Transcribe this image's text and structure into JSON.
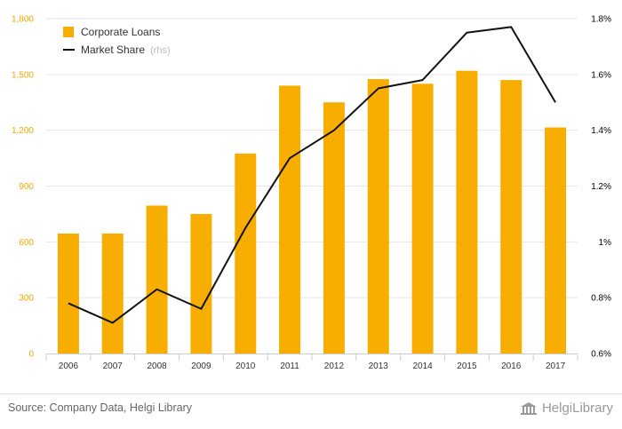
{
  "chart_data": {
    "type": "bar+line",
    "categories": [
      "2006",
      "2007",
      "2008",
      "2009",
      "2010",
      "2011",
      "2012",
      "2013",
      "2014",
      "2015",
      "2016",
      "2017"
    ],
    "series": [
      {
        "name": "Corporate Loans",
        "type": "bar",
        "axis": "left",
        "color": "#f7ae00",
        "values": [
          645,
          645,
          795,
          750,
          1075,
          1440,
          1350,
          1475,
          1450,
          1520,
          1470,
          1215
        ]
      },
      {
        "name": "Market Share",
        "type": "line",
        "axis": "right",
        "color": "#111111",
        "values": [
          0.78,
          0.71,
          0.83,
          0.76,
          1.05,
          1.3,
          1.4,
          1.55,
          1.58,
          1.75,
          1.77,
          1.5
        ]
      }
    ],
    "y_left": {
      "range": [
        0,
        1800
      ],
      "ticks": [
        0,
        300,
        600,
        900,
        1200,
        1500,
        1800
      ],
      "tick_labels": [
        "0",
        "300",
        "600",
        "900",
        "1,200",
        "1,500",
        "1,800"
      ]
    },
    "y_right": {
      "range": [
        0.6,
        1.8
      ],
      "ticks": [
        0.6,
        0.8,
        1.0,
        1.2,
        1.4,
        1.6,
        1.8
      ],
      "tick_labels": [
        "0.6%",
        "0.8%",
        "1%",
        "1.2%",
        "1.4%",
        "1.6%",
        "1.8%"
      ]
    },
    "grid": "horizontal",
    "legend_placement": "top-left",
    "legend": {
      "bar_label": "Corporate Loans",
      "line_label": "Market Share",
      "line_suffix": "(rhs)"
    }
  },
  "footer": {
    "source": "Source: Company Data, Helgi Library",
    "brand": "HelgiLibrary",
    "brand_icon": "building-icon"
  }
}
